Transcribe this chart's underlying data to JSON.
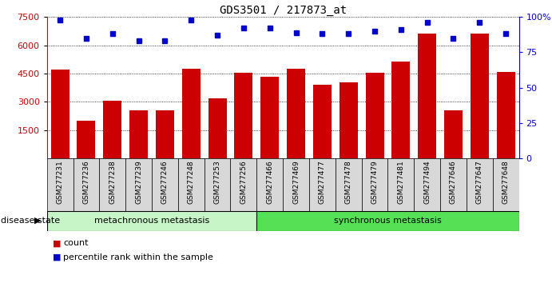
{
  "title": "GDS3501 / 217873_at",
  "samples": [
    "GSM277231",
    "GSM277236",
    "GSM277238",
    "GSM277239",
    "GSM277246",
    "GSM277248",
    "GSM277253",
    "GSM277256",
    "GSM277466",
    "GSM277469",
    "GSM277477",
    "GSM277478",
    "GSM277479",
    "GSM277481",
    "GSM277494",
    "GSM277646",
    "GSM277647",
    "GSM277648"
  ],
  "counts": [
    4700,
    2000,
    3050,
    2550,
    2550,
    4750,
    3200,
    4550,
    4350,
    4750,
    3900,
    4050,
    4550,
    5150,
    6600,
    2550,
    6600,
    4600
  ],
  "percentiles": [
    98,
    85,
    88,
    83,
    83,
    98,
    87,
    92,
    92,
    89,
    88,
    88,
    90,
    91,
    96,
    85,
    96,
    88
  ],
  "groups": [
    {
      "label": "metachronous metastasis",
      "start": 0,
      "end": 8,
      "color": "#c8f5c8"
    },
    {
      "label": "synchronous metastasis",
      "start": 8,
      "end": 18,
      "color": "#55e055"
    }
  ],
  "ylim_left": [
    0,
    7500
  ],
  "yticks_left": [
    1500,
    3000,
    4500,
    6000,
    7500
  ],
  "ylim_right": [
    0,
    100
  ],
  "yticks_right": [
    0,
    25,
    50,
    75,
    100
  ],
  "bar_color": "#cc0000",
  "dot_color": "#0000cc",
  "background_color": "#ffffff",
  "grid_color": "#000000",
  "legend_count_color": "#cc0000",
  "legend_pct_color": "#0000cc",
  "disease_state_label": "disease state",
  "legend_count": "count",
  "legend_pct": "percentile rank within the sample",
  "xtick_bg": "#d8d8d8"
}
